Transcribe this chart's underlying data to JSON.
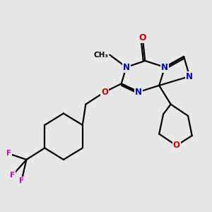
{
  "background_color": "#e8e8e8",
  "bond_color": "#000000",
  "bond_width": 1.6,
  "atom_colors": {
    "N": "#0000cc",
    "O": "#cc0000",
    "F": "#cc00cc",
    "C": "#000000"
  },
  "font_size_atom": 8.5,
  "fig_bg": "#e8e8e8"
}
